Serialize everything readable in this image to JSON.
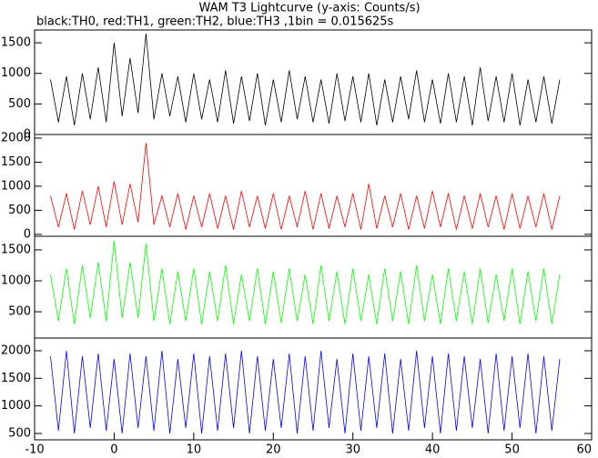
{
  "chart_data": [
    {
      "type": "line",
      "title": "WAM T3 Lightcurve (y-axis: Counts/s)",
      "subtitle": "black:TH0, red:TH1, green:TH2, blue:TH3 ,1bin = 0.015625s",
      "x": [
        -8,
        -7,
        -6,
        -5,
        -4,
        -3,
        -2,
        -1,
        0,
        1,
        2,
        3,
        4,
        5,
        6,
        7,
        8,
        9,
        10,
        11,
        12,
        13,
        14,
        15,
        16,
        17,
        18,
        19,
        20,
        21,
        22,
        23,
        24,
        25,
        26,
        27,
        28,
        29,
        30,
        31,
        32,
        33,
        34,
        35,
        36,
        37,
        38,
        39,
        40,
        41,
        42,
        43,
        44,
        45,
        46,
        47,
        48,
        49,
        50,
        51,
        52,
        53,
        54,
        55,
        56
      ],
      "series": [
        {
          "color": "#000000",
          "values": [
            900,
            200,
            950,
            150,
            1000,
            250,
            1100,
            200,
            1500,
            300,
            1250,
            350,
            1650,
            250,
            1000,
            300,
            950,
            200,
            1000,
            250,
            900,
            200,
            1050,
            180,
            950,
            220,
            1000,
            150,
            900,
            200,
            1050,
            250,
            950,
            200,
            900,
            180,
            1000,
            220,
            950,
            200,
            1000,
            150,
            900,
            200,
            950,
            250,
            1050,
            200,
            900,
            180,
            1000,
            200,
            950,
            150,
            1100,
            220,
            950,
            200,
            1000,
            150,
            900,
            200,
            950,
            180,
            900
          ]
        }
      ],
      "xlim": [
        -10,
        60
      ],
      "ylim": [
        0,
        1710
      ],
      "yticks": [
        0,
        500,
        1000,
        1500
      ]
    },
    {
      "type": "line",
      "x": [
        -8,
        -7,
        -6,
        -5,
        -4,
        -3,
        -2,
        -1,
        0,
        1,
        2,
        3,
        4,
        5,
        6,
        7,
        8,
        9,
        10,
        11,
        12,
        13,
        14,
        15,
        16,
        17,
        18,
        19,
        20,
        21,
        22,
        23,
        24,
        25,
        26,
        27,
        28,
        29,
        30,
        31,
        32,
        33,
        34,
        35,
        36,
        37,
        38,
        39,
        40,
        41,
        42,
        43,
        44,
        45,
        46,
        47,
        48,
        49,
        50,
        51,
        52,
        53,
        54,
        55,
        56
      ],
      "series": [
        {
          "color": "#ff0000",
          "values": [
            800,
            150,
            850,
            100,
            900,
            200,
            1000,
            150,
            1100,
            200,
            1050,
            250,
            1900,
            200,
            800,
            150,
            850,
            100,
            800,
            150,
            850,
            120,
            800,
            100,
            900,
            150,
            800,
            120,
            850,
            100,
            800,
            150,
            900,
            100,
            850,
            120,
            800,
            150,
            850,
            100,
            1050,
            120,
            800,
            150,
            850,
            100,
            800,
            120,
            900,
            150,
            850,
            100,
            800,
            120,
            850,
            150,
            800,
            100,
            850,
            120,
            800,
            150,
            850,
            100,
            800
          ]
        }
      ],
      "xlim": [
        -10,
        60
      ],
      "ylim": [
        -40,
        2075
      ],
      "yticks": [
        0,
        500,
        1000,
        1500,
        2000
      ]
    },
    {
      "type": "line",
      "x": [
        -8,
        -7,
        -6,
        -5,
        -4,
        -3,
        -2,
        -1,
        0,
        1,
        2,
        3,
        4,
        5,
        6,
        7,
        8,
        9,
        10,
        11,
        12,
        13,
        14,
        15,
        16,
        17,
        18,
        19,
        20,
        21,
        22,
        23,
        24,
        25,
        26,
        27,
        28,
        29,
        30,
        31,
        32,
        33,
        34,
        35,
        36,
        37,
        38,
        39,
        40,
        41,
        42,
        43,
        44,
        45,
        46,
        47,
        48,
        49,
        50,
        51,
        52,
        53,
        54,
        55,
        56
      ],
      "series": [
        {
          "color": "#00ff00",
          "values": [
            1100,
            350,
            1200,
            300,
            1250,
            400,
            1300,
            350,
            1650,
            400,
            1300,
            400,
            1600,
            350,
            1200,
            300,
            1150,
            350,
            1200,
            300,
            1150,
            350,
            1250,
            300,
            1100,
            350,
            1200,
            300,
            1150,
            320,
            1200,
            350,
            1100,
            300,
            1250,
            350,
            1150,
            300,
            1200,
            350,
            1100,
            300,
            1200,
            350,
            1150,
            300,
            1250,
            350,
            1100,
            300,
            1200,
            350,
            1150,
            300,
            1200,
            320,
            1100,
            350,
            1200,
            300,
            1150,
            350,
            1200,
            300,
            1100
          ]
        }
      ],
      "xlim": [
        -10,
        60
      ],
      "ylim": [
        75,
        1720
      ],
      "yticks": [
        500,
        1000,
        1500
      ]
    },
    {
      "type": "line",
      "x": [
        -8,
        -7,
        -6,
        -5,
        -4,
        -3,
        -2,
        -1,
        0,
        1,
        2,
        3,
        4,
        5,
        6,
        7,
        8,
        9,
        10,
        11,
        12,
        13,
        14,
        15,
        16,
        17,
        18,
        19,
        20,
        21,
        22,
        23,
        24,
        25,
        26,
        27,
        28,
        29,
        30,
        31,
        32,
        33,
        34,
        35,
        36,
        37,
        38,
        39,
        40,
        41,
        42,
        43,
        44,
        45,
        46,
        47,
        48,
        49,
        50,
        51,
        52,
        53,
        54,
        55,
        56
      ],
      "series": [
        {
          "color": "#0000ff",
          "values": [
            1900,
            550,
            2000,
            500,
            1900,
            600,
            1950,
            550,
            1850,
            500,
            1950,
            600,
            1900,
            550,
            2000,
            500,
            1850,
            600,
            1950,
            500,
            1900,
            550,
            1950,
            600,
            2000,
            500,
            1900,
            550,
            1850,
            600,
            1950,
            500,
            1900,
            550,
            2000,
            600,
            1850,
            500,
            1950,
            550,
            1900,
            600,
            1950,
            500,
            1850,
            550,
            2000,
            600,
            1900,
            500,
            1950,
            550,
            1900,
            600,
            1850,
            500,
            1950,
            550,
            1900,
            600,
            1950,
            500,
            1900,
            550,
            1850
          ]
        }
      ],
      "xlim": [
        -10,
        60
      ],
      "ylim": [
        385,
        2230
      ],
      "yticks": [
        500,
        1000,
        1500,
        2000
      ],
      "xticks": [
        -10,
        0,
        10,
        20,
        30,
        40,
        50,
        60
      ]
    }
  ]
}
